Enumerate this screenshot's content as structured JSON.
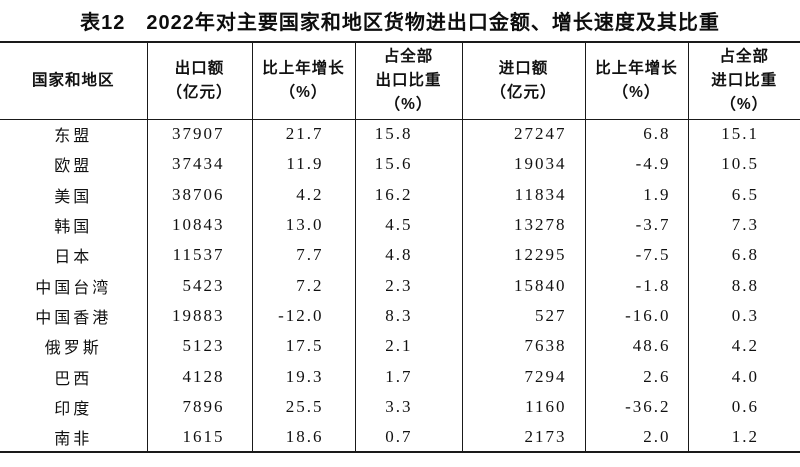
{
  "title": "表12　2022年对主要国家和地区货物进出口金额、增长速度及其比重",
  "colors": {
    "background": "#ffffff",
    "text": "#111111",
    "border": "#1a1a1a"
  },
  "table": {
    "columns": [
      {
        "id": "region",
        "label": "国家和地区",
        "lines": [
          "国家和地区"
        ]
      },
      {
        "id": "export_value",
        "label": "出口额（亿元）",
        "lines": [
          "出口额",
          "（亿元）"
        ]
      },
      {
        "id": "export_growth",
        "label": "比上年增长（%）",
        "lines": [
          "比上年增长",
          "（%）"
        ]
      },
      {
        "id": "export_share",
        "label": "占全部出口比重（%）",
        "lines": [
          "占全部",
          "出口比重",
          "（%）"
        ]
      },
      {
        "id": "import_value",
        "label": "进口额（亿元）",
        "lines": [
          "进口额",
          "（亿元）"
        ]
      },
      {
        "id": "import_growth",
        "label": "比上年增长（%）",
        "lines": [
          "比上年增长",
          "（%）"
        ]
      },
      {
        "id": "import_share",
        "label": "占全部进口比重（%）",
        "lines": [
          "占全部",
          "进口比重",
          "（%）"
        ]
      }
    ],
    "rows": [
      {
        "region": "东盟",
        "export_value": "37907",
        "export_growth": "21.7",
        "export_share": "15.8",
        "import_value": "27247",
        "import_growth": "6.8",
        "import_share": "15.1"
      },
      {
        "region": "欧盟",
        "export_value": "37434",
        "export_growth": "11.9",
        "export_share": "15.6",
        "import_value": "19034",
        "import_growth": "-4.9",
        "import_share": "10.5"
      },
      {
        "region": "美国",
        "export_value": "38706",
        "export_growth": "4.2",
        "export_share": "16.2",
        "import_value": "11834",
        "import_growth": "1.9",
        "import_share": "6.5"
      },
      {
        "region": "韩国",
        "export_value": "10843",
        "export_growth": "13.0",
        "export_share": "4.5",
        "import_value": "13278",
        "import_growth": "-3.7",
        "import_share": "7.3"
      },
      {
        "region": "日本",
        "export_value": "11537",
        "export_growth": "7.7",
        "export_share": "4.8",
        "import_value": "12295",
        "import_growth": "-7.5",
        "import_share": "6.8"
      },
      {
        "region": "中国台湾",
        "export_value": "5423",
        "export_growth": "7.2",
        "export_share": "2.3",
        "import_value": "15840",
        "import_growth": "-1.8",
        "import_share": "8.8"
      },
      {
        "region": "中国香港",
        "export_value": "19883",
        "export_growth": "-12.0",
        "export_share": "8.3",
        "import_value": "527",
        "import_growth": "-16.0",
        "import_share": "0.3"
      },
      {
        "region": "俄罗斯",
        "export_value": "5123",
        "export_growth": "17.5",
        "export_share": "2.1",
        "import_value": "7638",
        "import_growth": "48.6",
        "import_share": "4.2"
      },
      {
        "region": "巴西",
        "export_value": "4128",
        "export_growth": "19.3",
        "export_share": "1.7",
        "import_value": "7294",
        "import_growth": "2.6",
        "import_share": "4.0"
      },
      {
        "region": "印度",
        "export_value": "7896",
        "export_growth": "25.5",
        "export_share": "3.3",
        "import_value": "1160",
        "import_growth": "-36.2",
        "import_share": "0.6"
      },
      {
        "region": "南非",
        "export_value": "1615",
        "export_growth": "18.6",
        "export_share": "0.7",
        "import_value": "2173",
        "import_growth": "2.0",
        "import_share": "1.2"
      }
    ]
  }
}
